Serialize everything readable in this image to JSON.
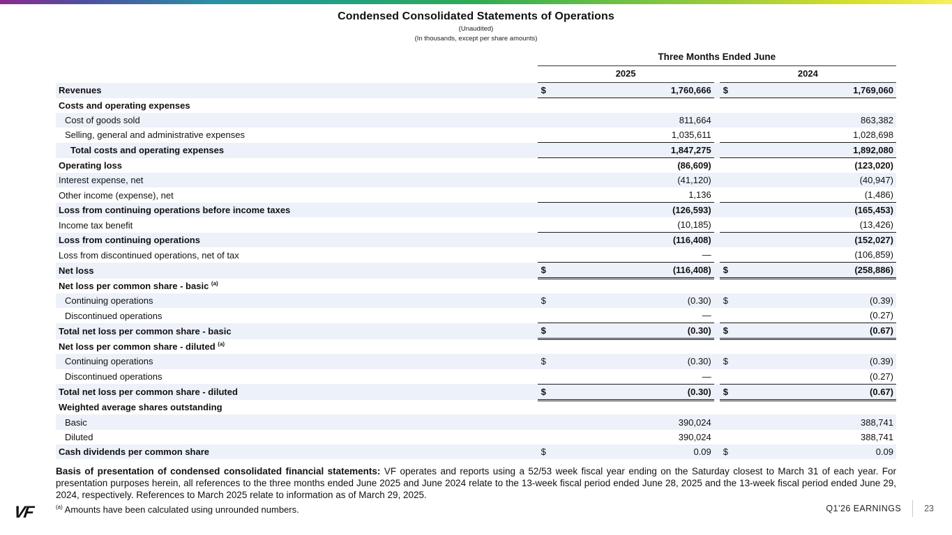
{
  "slide": {
    "title": "Condensed Consolidated Statements of Operations",
    "subtitle_unaudited": "(Unaudited)",
    "subtitle_units": "(In thousands, except per share amounts)",
    "logo_text": "VF",
    "footer_label": "Q1’26 EARNINGS",
    "page_number": "23"
  },
  "colors": {
    "row_stripe": "#edf1f9",
    "border": "#1a1a1a"
  },
  "table": {
    "period_header": "Three Months Ended June",
    "year_columns": [
      "2025",
      "2024"
    ],
    "rows": [
      {
        "label": "Revenues",
        "bold": true,
        "indent": 0,
        "d1": "$",
        "v1": "1,760,666",
        "d2": "$",
        "v2": "1,769,060",
        "vbold": true,
        "border": "single"
      },
      {
        "label": "Costs and operating expenses",
        "bold": true,
        "indent": 0
      },
      {
        "label": "Cost of goods sold",
        "indent": 1,
        "v1": "811,664",
        "v2": "863,382"
      },
      {
        "label": "Selling, general and administrative expenses",
        "indent": 1,
        "v1": "1,035,611",
        "v2": "1,028,698",
        "border": "single"
      },
      {
        "label": "Total costs and operating expenses",
        "bold": true,
        "indent": 2,
        "v1": "1,847,275",
        "v2": "1,892,080",
        "vbold": true,
        "border": "single"
      },
      {
        "label": "Operating loss",
        "bold": true,
        "indent": 0,
        "v1": "(86,609)",
        "v2": "(123,020)",
        "vbold": true
      },
      {
        "label": "Interest expense, net",
        "indent": 0,
        "v1": "(41,120)",
        "v2": "(40,947)"
      },
      {
        "label": "Other income (expense), net",
        "indent": 0,
        "v1": "1,136",
        "v2": "(1,486)",
        "border": "single"
      },
      {
        "label": "Loss from continuing operations before income taxes",
        "bold": true,
        "indent": 0,
        "v1": "(126,593)",
        "v2": "(165,453)",
        "vbold": true
      },
      {
        "label": "Income tax benefit",
        "indent": 0,
        "v1": "(10,185)",
        "v2": "(13,426)",
        "border": "single"
      },
      {
        "label": "Loss from continuing operations",
        "bold": true,
        "indent": 0,
        "v1": "(116,408)",
        "v2": "(152,027)",
        "vbold": true
      },
      {
        "label": "Loss from discontinued operations, net of tax",
        "indent": 0,
        "v1": "—",
        "v2": "(106,859)",
        "border": "single"
      },
      {
        "label": "Net loss",
        "bold": true,
        "indent": 0,
        "d1": "$",
        "v1": "(116,408)",
        "d2": "$",
        "v2": "(258,886)",
        "vbold": true,
        "border": "double"
      },
      {
        "label": "Net loss per common share - basic ",
        "sup": "(a)",
        "bold": true,
        "indent": 0
      },
      {
        "label": "Continuing operations",
        "indent": 1,
        "d1": "$",
        "v1": "(0.30)",
        "d2": "$",
        "v2": "(0.39)"
      },
      {
        "label": "Discontinued operations",
        "indent": 1,
        "v1": "—",
        "v2": "(0.27)",
        "border": "single"
      },
      {
        "label": "Total net loss per common share - basic",
        "bold": true,
        "indent": 0,
        "d1": "$",
        "v1": "(0.30)",
        "d2": "$",
        "v2": "(0.67)",
        "vbold": true,
        "border": "double"
      },
      {
        "label": "Net loss per common share - diluted ",
        "sup": "(a)",
        "bold": true,
        "indent": 0
      },
      {
        "label": "Continuing operations",
        "indent": 1,
        "d1": "$",
        "v1": "(0.30)",
        "d2": "$",
        "v2": "(0.39)"
      },
      {
        "label": "Discontinued operations",
        "indent": 1,
        "v1": "—",
        "v2": "(0.27)",
        "border": "single"
      },
      {
        "label": "Total net loss per common share - diluted",
        "bold": true,
        "indent": 0,
        "d1": "$",
        "v1": "(0.30)",
        "d2": "$",
        "v2": "(0.67)",
        "vbold": true,
        "border": "double"
      },
      {
        "label": "Weighted average shares outstanding",
        "bold": true,
        "indent": 0
      },
      {
        "label": "Basic",
        "indent": 1,
        "v1": "390,024",
        "v2": "388,741"
      },
      {
        "label": "Diluted",
        "indent": 1,
        "v1": "390,024",
        "v2": "388,741"
      },
      {
        "label": "Cash dividends per common share",
        "bold": true,
        "indent": 0,
        "d1": "$",
        "v1": "0.09",
        "d2": "$",
        "v2": "0.09"
      }
    ]
  },
  "notes": {
    "basis_lead": "Basis of presentation of condensed consolidated financial statements:",
    "basis_body": " VF operates and reports using a 52/53 week fiscal year ending on the Saturday closest to March 31 of each year. For presentation purposes herein, all references to the three months ended June 2025 and June 2024 relate to the 13-week fiscal period ended June 28, 2025 and the 13-week fiscal period ended June 29, 2024, respectively. References to March 2025 relate to information as of March 29, 2025.",
    "footnote_marker": "(a)",
    "footnote_text": " Amounts have been calculated using unrounded numbers."
  }
}
